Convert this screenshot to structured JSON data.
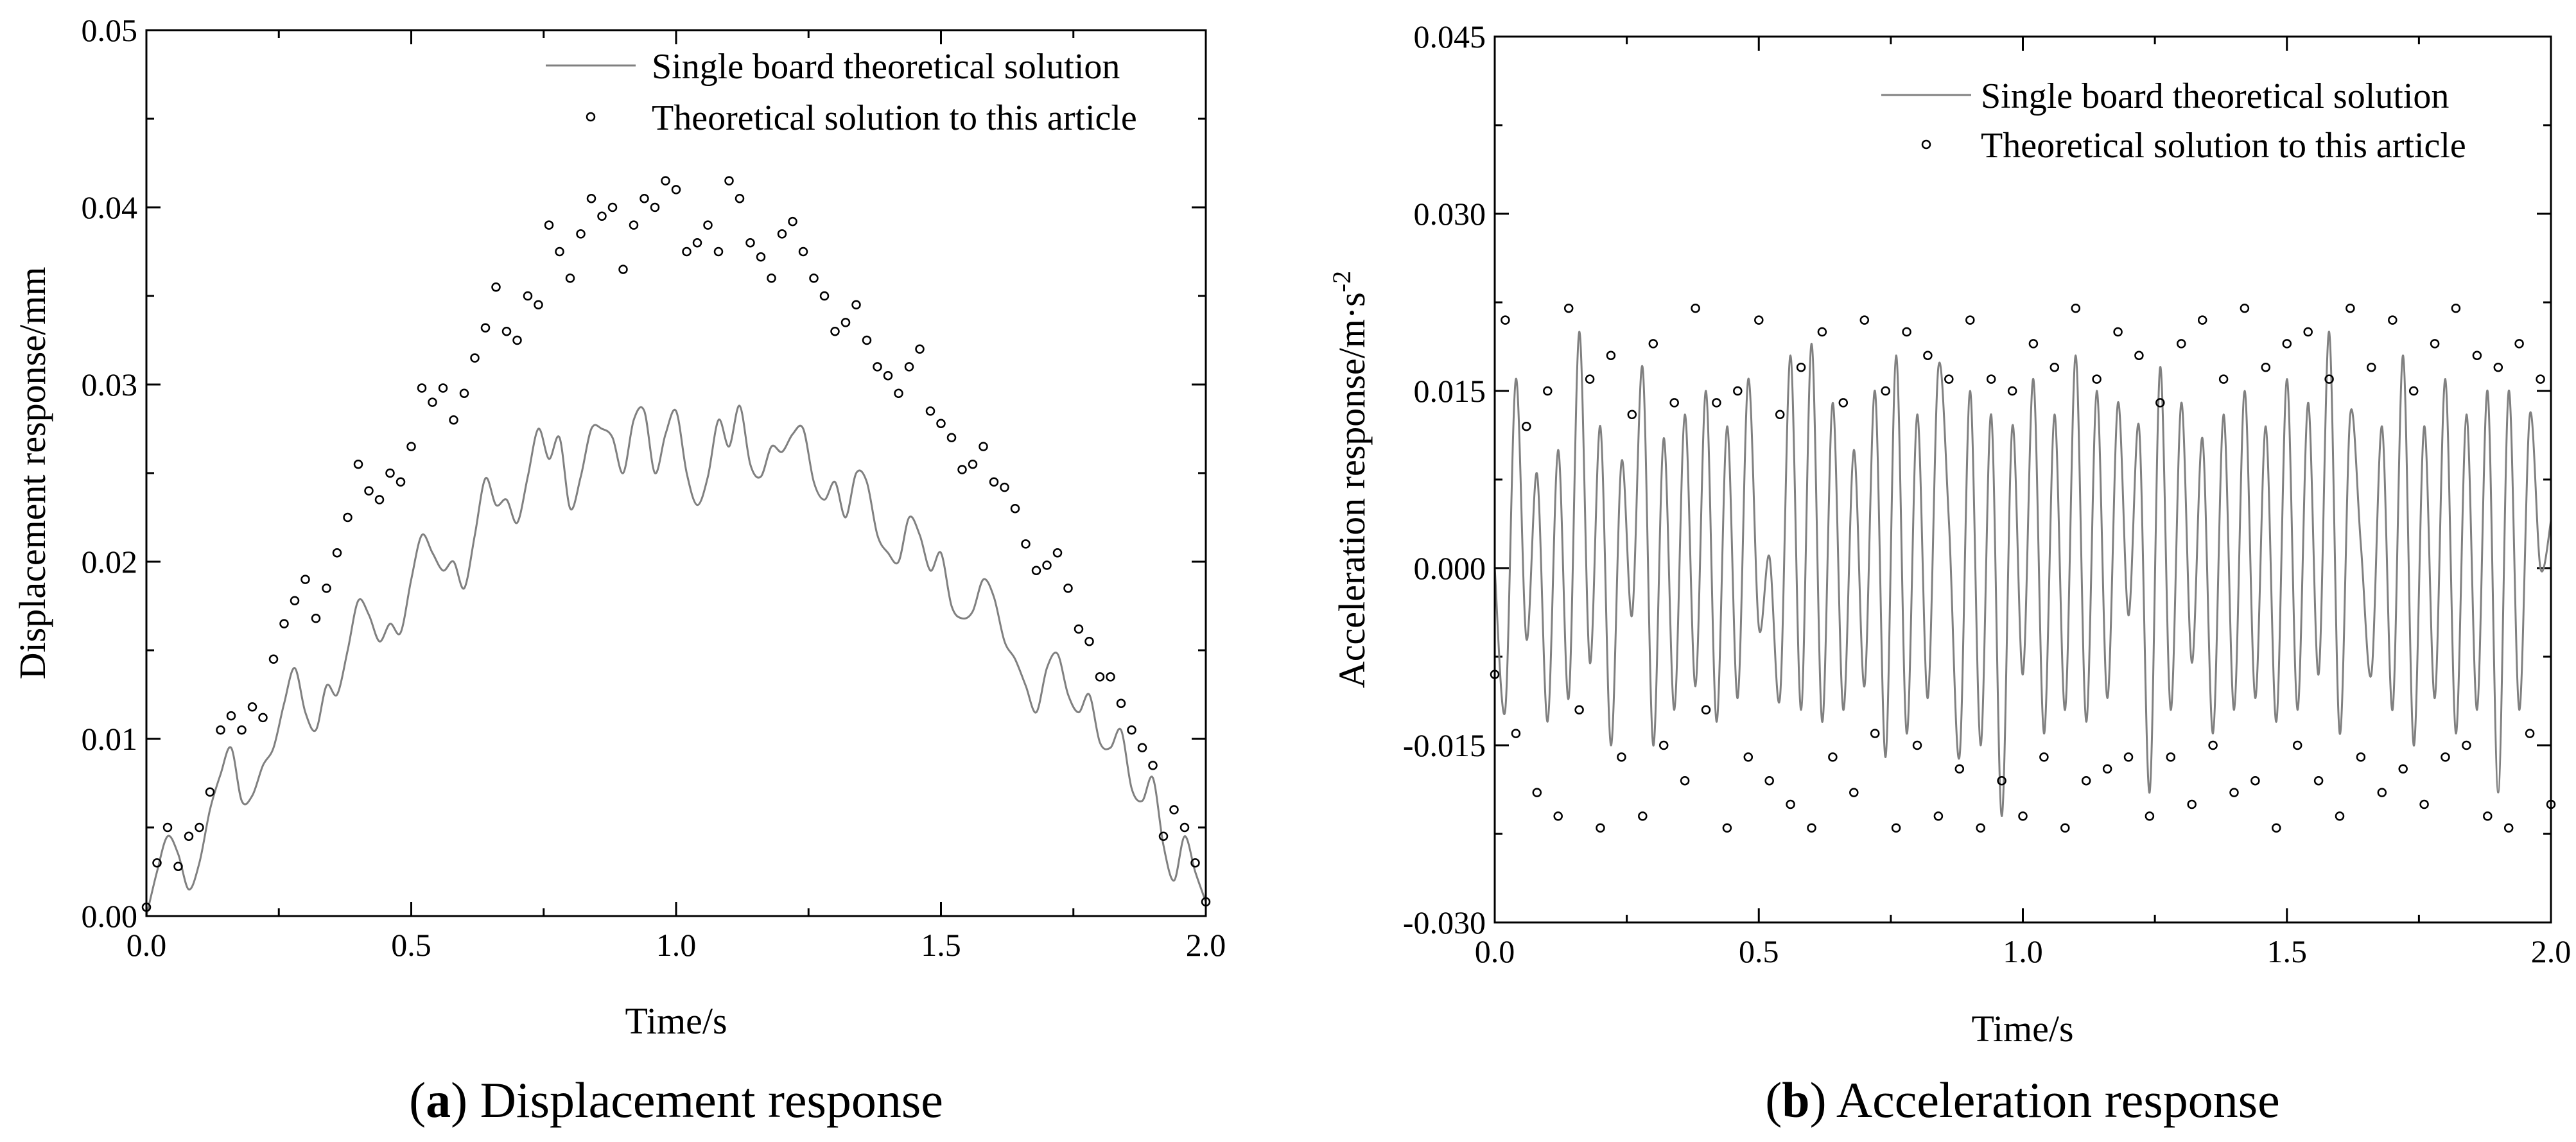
{
  "chart_data": [
    {
      "type": "line",
      "panel_letter": "a",
      "caption": "Displacement response",
      "xlabel": "Time/s",
      "ylabel": "Displacement response/mm",
      "xlim": [
        0.0,
        2.0
      ],
      "ylim": [
        0.0,
        0.05
      ],
      "xticks": [
        "0.0",
        "0.5",
        "1.0",
        "1.5",
        "2.0"
      ],
      "yticks": [
        "0.00",
        "0.01",
        "0.02",
        "0.03",
        "0.04",
        "0.05"
      ],
      "legend_position": "top-right",
      "series": [
        {
          "name": "Single board theoretical solution",
          "style": "line",
          "color": "#808080",
          "x": [
            0.0,
            0.02,
            0.04,
            0.06,
            0.08,
            0.1,
            0.12,
            0.14,
            0.16,
            0.18,
            0.2,
            0.22,
            0.24,
            0.26,
            0.28,
            0.3,
            0.32,
            0.34,
            0.36,
            0.38,
            0.4,
            0.42,
            0.44,
            0.46,
            0.48,
            0.5,
            0.52,
            0.54,
            0.56,
            0.58,
            0.6,
            0.62,
            0.64,
            0.66,
            0.68,
            0.7,
            0.72,
            0.74,
            0.76,
            0.78,
            0.8,
            0.82,
            0.84,
            0.86,
            0.88,
            0.9,
            0.92,
            0.94,
            0.96,
            0.98,
            1.0,
            1.02,
            1.04,
            1.06,
            1.08,
            1.1,
            1.12,
            1.14,
            1.16,
            1.18,
            1.2,
            1.22,
            1.24,
            1.26,
            1.28,
            1.3,
            1.32,
            1.34,
            1.36,
            1.38,
            1.4,
            1.42,
            1.44,
            1.46,
            1.48,
            1.5,
            1.52,
            1.54,
            1.56,
            1.58,
            1.6,
            1.62,
            1.64,
            1.66,
            1.68,
            1.7,
            1.72,
            1.74,
            1.76,
            1.78,
            1.8,
            1.82,
            1.84,
            1.86,
            1.88,
            1.9,
            1.92,
            1.94,
            1.96,
            1.98,
            2.0
          ],
          "values": [
            0.0,
            0.0025,
            0.0045,
            0.0035,
            0.0015,
            0.003,
            0.006,
            0.008,
            0.0095,
            0.0065,
            0.0068,
            0.0085,
            0.0095,
            0.012,
            0.014,
            0.0115,
            0.0105,
            0.013,
            0.0125,
            0.015,
            0.0178,
            0.017,
            0.0155,
            0.0165,
            0.016,
            0.019,
            0.0215,
            0.0205,
            0.0195,
            0.02,
            0.0185,
            0.0215,
            0.0247,
            0.0232,
            0.0235,
            0.0222,
            0.0248,
            0.0275,
            0.0258,
            0.027,
            0.023,
            0.0248,
            0.0275,
            0.0275,
            0.027,
            0.025,
            0.028,
            0.0285,
            0.025,
            0.0272,
            0.0285,
            0.025,
            0.0232,
            0.0248,
            0.028,
            0.0265,
            0.0288,
            0.0255,
            0.0248,
            0.0265,
            0.0262,
            0.0272,
            0.0275,
            0.0245,
            0.0235,
            0.0245,
            0.0225,
            0.025,
            0.0245,
            0.0215,
            0.0205,
            0.02,
            0.0225,
            0.0215,
            0.0195,
            0.0205,
            0.0175,
            0.0168,
            0.0172,
            0.019,
            0.018,
            0.0155,
            0.0145,
            0.013,
            0.0115,
            0.014,
            0.0148,
            0.0125,
            0.0115,
            0.0125,
            0.0098,
            0.0095,
            0.0105,
            0.0072,
            0.0065,
            0.0078,
            0.004,
            0.002,
            0.0045,
            0.0025,
            0.0008
          ]
        },
        {
          "name": "Theoretical solution to this article",
          "style": "markers",
          "color": "#000000",
          "x": [
            0.0,
            0.02,
            0.04,
            0.06,
            0.08,
            0.1,
            0.12,
            0.14,
            0.16,
            0.18,
            0.2,
            0.22,
            0.24,
            0.26,
            0.28,
            0.3,
            0.32,
            0.34,
            0.36,
            0.38,
            0.4,
            0.42,
            0.44,
            0.46,
            0.48,
            0.5,
            0.52,
            0.54,
            0.56,
            0.58,
            0.6,
            0.62,
            0.64,
            0.66,
            0.68,
            0.7,
            0.72,
            0.74,
            0.76,
            0.78,
            0.8,
            0.82,
            0.84,
            0.86,
            0.88,
            0.9,
            0.92,
            0.94,
            0.96,
            0.98,
            1.0,
            1.02,
            1.04,
            1.06,
            1.08,
            1.1,
            1.12,
            1.14,
            1.16,
            1.18,
            1.2,
            1.22,
            1.24,
            1.26,
            1.28,
            1.3,
            1.32,
            1.34,
            1.36,
            1.38,
            1.4,
            1.42,
            1.44,
            1.46,
            1.48,
            1.5,
            1.52,
            1.54,
            1.56,
            1.58,
            1.6,
            1.62,
            1.64,
            1.66,
            1.68,
            1.7,
            1.72,
            1.74,
            1.76,
            1.78,
            1.8,
            1.82,
            1.84,
            1.86,
            1.88,
            1.9,
            1.92,
            1.94,
            1.96,
            1.98,
            2.0
          ],
          "values": [
            0.0005,
            0.003,
            0.005,
            0.0028,
            0.0045,
            0.005,
            0.007,
            0.0105,
            0.0113,
            0.0105,
            0.0118,
            0.0112,
            0.0145,
            0.0165,
            0.0178,
            0.019,
            0.0168,
            0.0185,
            0.0205,
            0.0225,
            0.0255,
            0.024,
            0.0235,
            0.025,
            0.0245,
            0.0265,
            0.0298,
            0.029,
            0.0298,
            0.028,
            0.0295,
            0.0315,
            0.0332,
            0.0355,
            0.033,
            0.0325,
            0.035,
            0.0345,
            0.039,
            0.0375,
            0.036,
            0.0385,
            0.0405,
            0.0395,
            0.04,
            0.0365,
            0.039,
            0.0405,
            0.04,
            0.0415,
            0.041,
            0.0375,
            0.038,
            0.039,
            0.0375,
            0.0415,
            0.0405,
            0.038,
            0.0372,
            0.036,
            0.0385,
            0.0392,
            0.0375,
            0.036,
            0.035,
            0.033,
            0.0335,
            0.0345,
            0.0325,
            0.031,
            0.0305,
            0.0295,
            0.031,
            0.032,
            0.0285,
            0.0278,
            0.027,
            0.0252,
            0.0255,
            0.0265,
            0.0245,
            0.0242,
            0.023,
            0.021,
            0.0195,
            0.0198,
            0.0205,
            0.0185,
            0.0162,
            0.0155,
            0.0135,
            0.0135,
            0.012,
            0.0105,
            0.0095,
            0.0085,
            0.0045,
            0.006,
            0.005,
            0.003,
            0.0008
          ]
        }
      ]
    },
    {
      "type": "line",
      "panel_letter": "b",
      "caption": "Acceleration response",
      "xlabel": "Time/s",
      "ylabel_main": "Acceleration response/m·s",
      "ylabel_sup": "-2",
      "xlim": [
        0.0,
        2.0
      ],
      "ylim": [
        -0.03,
        0.045
      ],
      "xticks": [
        "0.0",
        "0.5",
        "1.0",
        "1.5",
        "2.0"
      ],
      "yticks": [
        "-0.030",
        "-0.015",
        "0.000",
        "0.015",
        "0.030",
        "0.045"
      ],
      "legend_position": "top-right",
      "series": [
        {
          "name": "Single board theoretical solution",
          "style": "line",
          "color": "#808080",
          "x": [
            0.0,
            0.02,
            0.04,
            0.06,
            0.08,
            0.1,
            0.12,
            0.14,
            0.16,
            0.18,
            0.2,
            0.22,
            0.24,
            0.26,
            0.28,
            0.3,
            0.32,
            0.34,
            0.36,
            0.38,
            0.4,
            0.42,
            0.44,
            0.46,
            0.48,
            0.5,
            0.52,
            0.54,
            0.56,
            0.58,
            0.6,
            0.62,
            0.64,
            0.66,
            0.68,
            0.7,
            0.72,
            0.74,
            0.76,
            0.78,
            0.8,
            0.82,
            0.84,
            0.86,
            0.88,
            0.9,
            0.92,
            0.94,
            0.96,
            0.98,
            1.0,
            1.02,
            1.04,
            1.06,
            1.08,
            1.1,
            1.12,
            1.14,
            1.16,
            1.18,
            1.2,
            1.22,
            1.24,
            1.26,
            1.28,
            1.3,
            1.32,
            1.34,
            1.36,
            1.38,
            1.4,
            1.42,
            1.44,
            1.46,
            1.48,
            1.5,
            1.52,
            1.54,
            1.56,
            1.58,
            1.6,
            1.62,
            1.64,
            1.66,
            1.68,
            1.7,
            1.72,
            1.74,
            1.76,
            1.78,
            1.8,
            1.82,
            1.84,
            1.86,
            1.88,
            1.9,
            1.92,
            1.94,
            1.96,
            1.98,
            2.0
          ],
          "values": [
            0.0,
            -0.012,
            0.016,
            -0.006,
            0.008,
            -0.013,
            0.01,
            -0.011,
            0.02,
            -0.008,
            0.012,
            -0.015,
            0.009,
            -0.004,
            0.017,
            -0.015,
            0.011,
            -0.012,
            0.013,
            -0.01,
            0.015,
            -0.013,
            0.012,
            -0.011,
            0.016,
            -0.005,
            0.001,
            -0.011,
            0.018,
            -0.012,
            0.019,
            -0.013,
            0.014,
            -0.012,
            0.01,
            -0.01,
            0.015,
            -0.016,
            0.018,
            -0.014,
            0.013,
            -0.011,
            0.017,
            0.004,
            -0.016,
            0.015,
            -0.015,
            0.013,
            -0.021,
            0.012,
            -0.009,
            0.016,
            -0.014,
            0.013,
            -0.012,
            0.018,
            -0.013,
            0.015,
            -0.011,
            0.014,
            -0.004,
            0.012,
            -0.019,
            0.017,
            -0.012,
            0.014,
            -0.008,
            0.011,
            -0.014,
            0.013,
            -0.012,
            0.015,
            -0.011,
            0.012,
            -0.013,
            0.016,
            -0.012,
            0.014,
            -0.009,
            0.02,
            -0.014,
            0.013,
            0.002,
            -0.009,
            0.012,
            -0.012,
            0.018,
            -0.015,
            0.012,
            -0.011,
            0.016,
            -0.014,
            0.013,
            -0.012,
            0.015,
            -0.019,
            0.015,
            -0.012,
            0.013,
            0.0,
            0.004
          ]
        },
        {
          "name": "Theoretical solution to this article",
          "style": "markers",
          "color": "#000000",
          "x": [
            0.0,
            0.02,
            0.04,
            0.06,
            0.08,
            0.1,
            0.12,
            0.14,
            0.16,
            0.18,
            0.2,
            0.22,
            0.24,
            0.26,
            0.28,
            0.3,
            0.32,
            0.34,
            0.36,
            0.38,
            0.4,
            0.42,
            0.44,
            0.46,
            0.48,
            0.5,
            0.52,
            0.54,
            0.56,
            0.58,
            0.6,
            0.62,
            0.64,
            0.66,
            0.68,
            0.7,
            0.72,
            0.74,
            0.76,
            0.78,
            0.8,
            0.82,
            0.84,
            0.86,
            0.88,
            0.9,
            0.92,
            0.94,
            0.96,
            0.98,
            1.0,
            1.02,
            1.04,
            1.06,
            1.08,
            1.1,
            1.12,
            1.14,
            1.16,
            1.18,
            1.2,
            1.22,
            1.24,
            1.26,
            1.28,
            1.3,
            1.32,
            1.34,
            1.36,
            1.38,
            1.4,
            1.42,
            1.44,
            1.46,
            1.48,
            1.5,
            1.52,
            1.54,
            1.56,
            1.58,
            1.6,
            1.62,
            1.64,
            1.66,
            1.68,
            1.7,
            1.72,
            1.74,
            1.76,
            1.78,
            1.8,
            1.82,
            1.84,
            1.86,
            1.88,
            1.9,
            1.92,
            1.94,
            1.96,
            1.98,
            2.0
          ],
          "values": [
            -0.009,
            0.021,
            -0.014,
            0.012,
            -0.019,
            0.015,
            -0.021,
            0.022,
            -0.012,
            0.016,
            -0.022,
            0.018,
            -0.016,
            0.013,
            -0.021,
            0.019,
            -0.015,
            0.014,
            -0.018,
            0.022,
            -0.012,
            0.014,
            -0.022,
            0.015,
            -0.016,
            0.021,
            -0.018,
            0.013,
            -0.02,
            0.017,
            -0.022,
            0.02,
            -0.016,
            0.014,
            -0.019,
            0.021,
            -0.014,
            0.015,
            -0.022,
            0.02,
            -0.015,
            0.018,
            -0.021,
            0.016,
            -0.017,
            0.021,
            -0.022,
            0.016,
            -0.018,
            0.015,
            -0.021,
            0.019,
            -0.016,
            0.017,
            -0.022,
            0.022,
            -0.018,
            0.016,
            -0.017,
            0.02,
            -0.016,
            0.018,
            -0.021,
            0.014,
            -0.016,
            0.019,
            -0.02,
            0.021,
            -0.015,
            0.016,
            -0.019,
            0.022,
            -0.018,
            0.017,
            -0.022,
            0.019,
            -0.015,
            0.02,
            -0.018,
            0.016,
            -0.021,
            0.022,
            -0.016,
            0.017,
            -0.019,
            0.021,
            -0.017,
            0.015,
            -0.02,
            0.019,
            -0.016,
            0.022,
            -0.015,
            0.018,
            -0.021,
            0.017,
            -0.022,
            0.019,
            -0.014,
            0.016,
            -0.02
          ]
        }
      ]
    }
  ]
}
